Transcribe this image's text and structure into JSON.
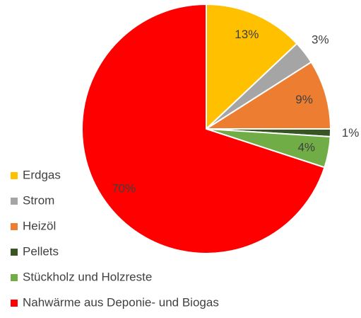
{
  "chart_data": {
    "type": "pie",
    "categories": [
      "Erdgas",
      "Strom",
      "Heizöl",
      "Pellets",
      "Stückholz und Holzreste",
      "Nahwärme aus Deponie- und Biogas"
    ],
    "values": [
      13,
      3,
      9,
      1,
      4,
      70
    ],
    "value_labels": [
      "13%",
      "3%",
      "9%",
      "1%",
      "4%",
      "70%"
    ],
    "colors": [
      "#ffc000",
      "#a5a5a5",
      "#ed7d31",
      "#375623",
      "#70ad47",
      "#ff0000"
    ],
    "legend": "left"
  }
}
